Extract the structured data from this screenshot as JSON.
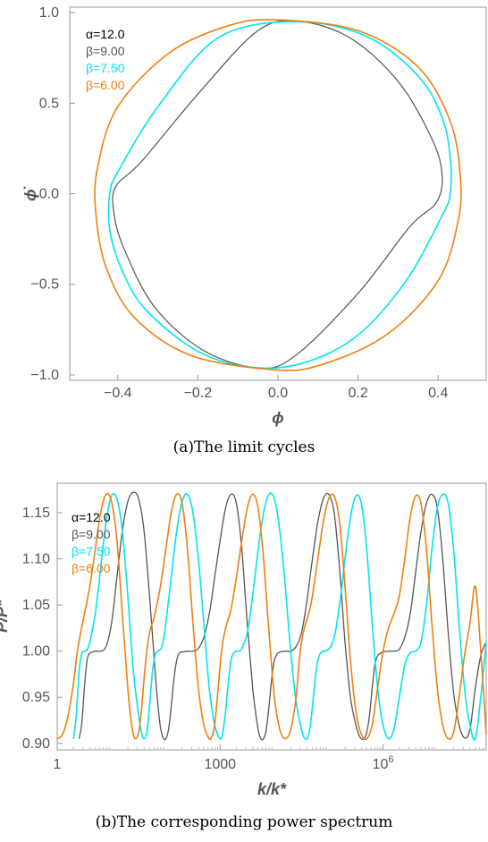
{
  "charts": [
    {
      "type": "line",
      "caption": "(a)The limit cycles",
      "xlabel": "ϕ",
      "ylabel": "ϕ̇",
      "xlim": [
        -0.52,
        0.52
      ],
      "ylim": [
        -1.03,
        1.03
      ],
      "x_scale": "linear",
      "x_ticks": [
        -0.4,
        -0.2,
        0.0,
        0.2,
        0.4
      ],
      "x_tick_labels": [
        "−0.4",
        "−0.2",
        "0.0",
        "0.2",
        "0.4"
      ],
      "y_ticks": [
        -1.0,
        -0.5,
        0.0,
        0.5,
        1.0
      ],
      "y_tick_labels": [
        "−1.0",
        "−0.5",
        "0.0",
        "0.5",
        "1.0"
      ],
      "legend_position": "top-left",
      "series": [
        {
          "name": "α=12.0",
          "color": "#000000",
          "shape": "hidden",
          "width": 0,
          "x": [],
          "y": []
        },
        {
          "name": "β=9.00",
          "color": "#555555",
          "shape": "closed",
          "width": 1.2,
          "x": [
            0.055,
            0.18,
            0.3,
            0.385,
            0.41,
            0.395,
            0.33,
            0.2,
            0.04,
            -0.055,
            -0.19,
            -0.31,
            -0.385,
            -0.41,
            -0.405,
            -0.34,
            -0.2,
            -0.05
          ],
          "y": [
            0.95,
            0.86,
            0.62,
            0.3,
            0.1,
            -0.05,
            -0.18,
            -0.55,
            -0.9,
            -0.96,
            -0.86,
            -0.62,
            -0.3,
            -0.1,
            0.04,
            0.18,
            0.55,
            0.9
          ]
        },
        {
          "name": "β=7.50",
          "color": "#00e5ee",
          "shape": "closed",
          "width": 1.6,
          "x": [
            0.04,
            0.22,
            0.35,
            0.41,
            0.43,
            0.43,
            0.41,
            0.32,
            0.2,
            0.07,
            -0.06,
            -0.2,
            -0.33,
            -0.39,
            -0.42,
            -0.42,
            -0.4,
            -0.3,
            -0.15
          ],
          "y": [
            0.95,
            0.87,
            0.65,
            0.42,
            0.2,
            0.0,
            -0.12,
            -0.48,
            -0.78,
            -0.93,
            -0.96,
            -0.87,
            -0.64,
            -0.42,
            -0.2,
            0.0,
            0.12,
            0.48,
            0.86
          ]
        },
        {
          "name": "β=6.00",
          "color": "#ee8010",
          "shape": "closed",
          "width": 1.6,
          "x": [
            0.0,
            0.2,
            0.35,
            0.43,
            0.455,
            0.45,
            0.4,
            0.27,
            0.1,
            -0.02,
            -0.22,
            -0.36,
            -0.43,
            -0.455,
            -0.45,
            -0.4,
            -0.27,
            -0.12
          ],
          "y": [
            0.96,
            0.9,
            0.7,
            0.4,
            0.1,
            -0.15,
            -0.48,
            -0.78,
            -0.95,
            -0.97,
            -0.89,
            -0.68,
            -0.4,
            -0.1,
            0.15,
            0.48,
            0.78,
            0.93
          ]
        }
      ]
    },
    {
      "type": "line",
      "caption": "(b)The corresponding power spectrum",
      "xlabel": "k/k*",
      "ylabel": "P/P*",
      "x_scale": "log10",
      "xlim": [
        0,
        7.9
      ],
      "ylim": [
        0.893,
        1.182
      ],
      "x_ticks": [
        0,
        3,
        6
      ],
      "x_tick_labels": [
        "1",
        "1000",
        "10^6"
      ],
      "y_ticks": [
        0.9,
        0.95,
        1.0,
        1.05,
        1.1,
        1.15
      ],
      "y_tick_labels": [
        "0.90",
        "0.95",
        "1.00",
        "1.05",
        "1.10",
        "1.15"
      ],
      "legend_position": "top-left",
      "series": [
        {
          "name": "α=12.0",
          "color": "#000000",
          "shape": "hidden",
          "width": 0,
          "x": [],
          "y": []
        },
        {
          "name": "β=9.00",
          "color": "#555555",
          "shape": "open",
          "width": 1.3,
          "x": [
            0.4,
            0.45,
            0.5,
            0.55,
            0.6,
            0.65,
            0.7,
            0.8,
            0.9,
            1.0,
            1.1,
            1.2,
            1.3,
            1.4,
            1.5,
            1.6,
            1.7,
            1.8,
            1.85,
            1.9,
            1.95,
            2.0,
            2.05,
            2.1,
            2.15,
            2.2,
            2.25,
            2.3,
            2.4,
            2.5,
            2.6,
            2.7,
            2.8,
            2.9,
            3.0,
            3.1,
            3.2,
            3.3,
            3.4,
            3.5,
            3.6,
            3.65,
            3.7,
            3.75,
            3.8,
            3.85,
            3.9,
            3.95,
            4.0,
            4.05,
            4.1,
            4.2,
            4.3,
            4.4,
            4.5,
            4.6,
            4.7,
            4.8,
            4.9,
            5.0,
            5.1,
            5.2,
            5.3,
            5.4,
            5.5,
            5.55,
            5.6,
            5.65,
            5.7,
            5.75,
            5.8,
            5.85,
            5.9,
            6.0,
            6.1,
            6.2,
            6.3,
            6.4,
            6.5,
            6.6,
            6.7,
            6.8,
            6.9,
            7.0,
            7.1,
            7.2,
            7.3,
            7.4,
            7.5,
            7.6,
            7.7,
            7.8,
            7.9
          ],
          "y": [
            0.905,
            0.92,
            0.96,
            0.99,
            0.998,
            0.999,
            1.0,
            1.0,
            1.005,
            1.03,
            1.08,
            1.13,
            1.162,
            1.172,
            1.165,
            1.13,
            1.06,
            0.98,
            0.945,
            0.918,
            0.906,
            0.905,
            0.915,
            0.94,
            0.97,
            0.99,
            0.998,
            0.999,
            1.0,
            1.0,
            1.003,
            1.015,
            1.04,
            1.08,
            1.12,
            1.155,
            1.17,
            1.16,
            1.11,
            1.03,
            0.96,
            0.935,
            0.915,
            0.905,
            0.905,
            0.915,
            0.94,
            0.97,
            0.99,
            0.997,
            0.999,
            1.0,
            1.0,
            1.005,
            1.02,
            1.055,
            1.1,
            1.14,
            1.165,
            1.17,
            1.15,
            1.09,
            1.01,
            0.95,
            0.92,
            0.91,
            0.905,
            0.905,
            0.912,
            0.93,
            0.96,
            0.985,
            0.995,
            0.999,
            1.0,
            1.0,
            1.002,
            1.015,
            1.04,
            1.085,
            1.13,
            1.16,
            1.17,
            1.155,
            1.1,
            1.02,
            0.955,
            0.92,
            0.906,
            0.915,
            0.96,
            0.995,
            1.01
          ]
        },
        {
          "name": "β=7.50",
          "color": "#00e5ee",
          "shape": "open",
          "width": 1.6,
          "x": [
            0.3,
            0.35,
            0.4,
            0.45,
            0.5,
            0.55,
            0.6,
            0.7,
            0.8,
            0.9,
            1.0,
            1.1,
            1.2,
            1.3,
            1.4,
            1.5,
            1.55,
            1.6,
            1.65,
            1.7,
            1.75,
            1.8,
            1.85,
            1.9,
            1.95,
            2.0,
            2.1,
            2.2,
            2.3,
            2.4,
            2.5,
            2.6,
            2.7,
            2.8,
            2.9,
            3.0,
            3.05,
            3.1,
            3.15,
            3.2,
            3.25,
            3.3,
            3.35,
            3.4,
            3.5,
            3.6,
            3.7,
            3.8,
            3.9,
            4.0,
            4.1,
            4.2,
            4.3,
            4.4,
            4.5,
            4.55,
            4.6,
            4.65,
            4.7,
            4.75,
            4.8,
            4.85,
            4.9,
            5.0,
            5.1,
            5.2,
            5.3,
            5.4,
            5.5,
            5.6,
            5.7,
            5.8,
            5.9,
            6.0,
            6.1,
            6.2,
            6.3,
            6.4,
            6.5,
            6.6,
            6.7,
            6.8,
            6.9,
            7.0,
            7.1,
            7.2,
            7.3,
            7.4,
            7.5,
            7.6,
            7.7,
            7.8,
            7.9
          ],
          "y": [
            0.905,
            0.93,
            0.975,
            0.997,
            1.0,
            1.001,
            1.01,
            1.04,
            1.09,
            1.14,
            1.168,
            1.165,
            1.13,
            1.06,
            0.98,
            0.93,
            0.912,
            0.905,
            0.912,
            0.94,
            0.975,
            0.995,
            1.0,
            1.002,
            1.01,
            1.03,
            1.08,
            1.13,
            1.162,
            1.17,
            1.15,
            1.1,
            1.03,
            0.96,
            0.92,
            0.905,
            0.912,
            0.935,
            0.965,
            0.99,
            0.998,
            1.0,
            1.0,
            1.003,
            1.02,
            1.06,
            1.11,
            1.15,
            1.17,
            1.165,
            1.13,
            1.07,
            1.0,
            0.945,
            0.915,
            0.906,
            0.905,
            0.915,
            0.94,
            0.97,
            0.99,
            0.998,
            1.0,
            1.002,
            1.015,
            1.05,
            1.1,
            1.145,
            1.168,
            1.16,
            1.11,
            1.03,
            0.96,
            0.92,
            0.905,
            0.915,
            0.95,
            0.985,
            0.998,
            1.0,
            1.01,
            1.05,
            1.11,
            1.155,
            1.17,
            1.16,
            1.11,
            1.03,
            0.96,
            0.92,
            0.905,
            0.95,
            1.01
          ]
        },
        {
          "name": "β=6.00",
          "color": "#ee8010",
          "shape": "open",
          "width": 1.6,
          "x": [
            0.0,
            0.1,
            0.2,
            0.3,
            0.35,
            0.4,
            0.45,
            0.5,
            0.6,
            0.7,
            0.8,
            0.9,
            1.0,
            1.1,
            1.2,
            1.3,
            1.35,
            1.4,
            1.45,
            1.5,
            1.55,
            1.6,
            1.65,
            1.7,
            1.75,
            1.8,
            1.9,
            2.0,
            2.1,
            2.2,
            2.3,
            2.4,
            2.5,
            2.6,
            2.7,
            2.8,
            2.85,
            2.9,
            2.95,
            3.0,
            3.05,
            3.1,
            3.15,
            3.2,
            3.3,
            3.4,
            3.5,
            3.6,
            3.7,
            3.8,
            3.9,
            4.0,
            4.1,
            4.2,
            4.3,
            4.4,
            4.45,
            4.5,
            4.55,
            4.6,
            4.65,
            4.7,
            4.8,
            4.9,
            5.0,
            5.1,
            5.2,
            5.3,
            5.4,
            5.5,
            5.6,
            5.7,
            5.8,
            5.9,
            6.0,
            6.1,
            6.2,
            6.3,
            6.4,
            6.5,
            6.6,
            6.7,
            6.8,
            6.9,
            7.0,
            7.1,
            7.2,
            7.3,
            7.4,
            7.5,
            7.6,
            7.7,
            7.8,
            7.9
          ],
          "y": [
            0.905,
            0.91,
            0.93,
            0.965,
            0.99,
            1.01,
            1.025,
            1.04,
            1.07,
            1.11,
            1.15,
            1.17,
            1.162,
            1.12,
            1.04,
            0.96,
            0.93,
            0.91,
            0.905,
            0.912,
            0.935,
            0.97,
            1.0,
            1.02,
            1.03,
            1.04,
            1.07,
            1.11,
            1.15,
            1.17,
            1.16,
            1.11,
            1.03,
            0.96,
            0.92,
            0.905,
            0.908,
            0.92,
            0.95,
            0.985,
            1.01,
            1.025,
            1.035,
            1.045,
            1.08,
            1.12,
            1.155,
            1.17,
            1.155,
            1.1,
            1.02,
            0.95,
            0.915,
            0.905,
            0.915,
            0.95,
            0.985,
            1.01,
            1.025,
            1.035,
            1.045,
            1.06,
            1.1,
            1.14,
            1.165,
            1.168,
            1.14,
            1.07,
            0.99,
            0.935,
            0.91,
            0.905,
            0.92,
            0.96,
            1.0,
            1.025,
            1.04,
            1.06,
            1.1,
            1.145,
            1.168,
            1.16,
            1.11,
            1.03,
            0.96,
            0.92,
            0.905,
            0.912,
            0.95,
            0.995,
            1.03,
            1.07,
            1.0,
            0.91
          ]
        }
      ]
    }
  ]
}
